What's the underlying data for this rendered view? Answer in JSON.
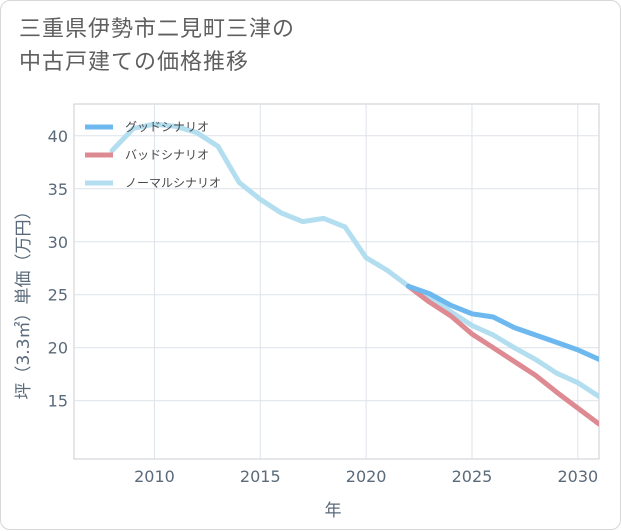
{
  "title": {
    "line1": "三重県伊勢市二見町三津の",
    "line2": "中古戸建ての価格推移"
  },
  "chart_data": {
    "type": "line",
    "xlabel": "年",
    "ylabel": "坪（3.3㎡）単価（万円）",
    "xlim": [
      2006.2,
      2031
    ],
    "ylim": [
      9.5,
      43
    ],
    "xticks": [
      2010,
      2015,
      2020,
      2025,
      2030
    ],
    "yticks": [
      15,
      20,
      25,
      30,
      35,
      40
    ],
    "grid": true,
    "legend_position": "top-left",
    "series": [
      {
        "name": "グッドシナリオ",
        "color": "#6cb8ef",
        "x": [
          2022,
          2023,
          2024,
          2025,
          2026,
          2027,
          2028,
          2029,
          2030,
          2031
        ],
        "y": [
          25.8,
          25.1,
          24.0,
          23.2,
          22.9,
          21.9,
          21.2,
          20.5,
          19.8,
          18.9
        ]
      },
      {
        "name": "バッドシナリオ",
        "color": "#de8a92",
        "x": [
          2022,
          2023,
          2024,
          2025,
          2026,
          2027,
          2028,
          2029,
          2030,
          2031
        ],
        "y": [
          25.8,
          24.3,
          23.0,
          21.3,
          20.0,
          18.7,
          17.4,
          15.8,
          14.3,
          12.8
        ]
      },
      {
        "name": "ノーマルシナリオ",
        "color": "#b3def0",
        "x": [
          2008,
          2009,
          2010,
          2011,
          2012,
          2013,
          2014,
          2015,
          2016,
          2017,
          2018,
          2019,
          2020,
          2021,
          2022,
          2023,
          2024,
          2025,
          2026,
          2027,
          2028,
          2029,
          2030,
          2031
        ],
        "y": [
          38.6,
          40.7,
          41.1,
          40.9,
          40.3,
          39.0,
          35.6,
          34.0,
          32.7,
          31.9,
          32.2,
          31.4,
          28.5,
          27.3,
          25.8,
          24.8,
          23.4,
          22.1,
          21.2,
          20.0,
          18.9,
          17.6,
          16.7,
          15.4
        ]
      }
    ]
  }
}
